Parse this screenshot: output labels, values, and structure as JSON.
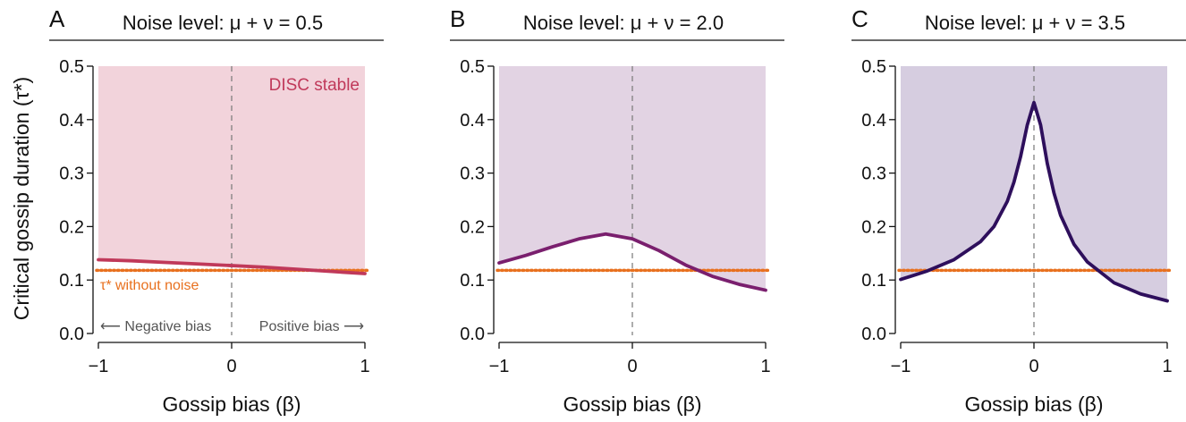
{
  "figure": {
    "ylabel": "Critical gossip duration (τ*)",
    "xlabel": "Gossip bias (β)",
    "annotations": {
      "region_label": "DISC stable",
      "baseline_label": "τ* without noise",
      "negative_bias": "⟵ Negative bias",
      "positive_bias": "Positive bias ⟶"
    }
  },
  "chart_data": [
    {
      "type": "line",
      "panel": "A",
      "title": "Noise level: μ + ν = 0.5",
      "xlabel": "Gossip bias (β)",
      "ylabel": "Critical gossip duration (τ*)",
      "xlim": [
        -1,
        1
      ],
      "ylim": [
        0,
        0.5
      ],
      "xticks": [
        -1,
        0,
        1
      ],
      "xtick_labels": [
        "−1",
        "0",
        "1"
      ],
      "yticks": [
        0.0,
        0.1,
        0.2,
        0.3,
        0.4,
        0.5
      ],
      "ytick_labels": [
        "0.0",
        "0.1",
        "0.2",
        "0.3",
        "0.4",
        "0.5"
      ],
      "shade_color": "#f2d3db",
      "curve_color": "#c0395a",
      "baseline": 0.118,
      "baseline_color": "#e8701e",
      "x": [
        -1.0,
        -0.75,
        -0.5,
        -0.25,
        0.0,
        0.25,
        0.5,
        0.75,
        1.0
      ],
      "y": [
        0.138,
        0.136,
        0.133,
        0.13,
        0.127,
        0.124,
        0.12,
        0.116,
        0.112
      ]
    },
    {
      "type": "line",
      "panel": "B",
      "title": "Noise level: μ + ν = 2.0",
      "xlabel": "Gossip bias (β)",
      "xlim": [
        -1,
        1
      ],
      "ylim": [
        0,
        0.5
      ],
      "xticks": [
        -1,
        0,
        1
      ],
      "xtick_labels": [
        "−1",
        "0",
        "1"
      ],
      "yticks": [
        0.0,
        0.1,
        0.2,
        0.3,
        0.4,
        0.5
      ],
      "ytick_labels": [
        "0.0",
        "0.1",
        "0.2",
        "0.3",
        "0.4",
        "0.5"
      ],
      "shade_color": "#e2d3e3",
      "curve_color": "#7a1f6e",
      "baseline": 0.118,
      "baseline_color": "#e8701e",
      "x": [
        -1.0,
        -0.8,
        -0.6,
        -0.4,
        -0.2,
        0.0,
        0.2,
        0.4,
        0.6,
        0.8,
        1.0
      ],
      "y": [
        0.132,
        0.146,
        0.162,
        0.177,
        0.186,
        0.177,
        0.155,
        0.128,
        0.107,
        0.092,
        0.081
      ]
    },
    {
      "type": "line",
      "panel": "C",
      "title": "Noise level: μ + ν = 3.5",
      "xlabel": "Gossip bias (β)",
      "xlim": [
        -1,
        1
      ],
      "ylim": [
        0,
        0.5
      ],
      "xticks": [
        -1,
        0,
        1
      ],
      "xtick_labels": [
        "−1",
        "0",
        "1"
      ],
      "yticks": [
        0.0,
        0.1,
        0.2,
        0.3,
        0.4,
        0.5
      ],
      "ytick_labels": [
        "0.0",
        "0.1",
        "0.2",
        "0.3",
        "0.4",
        "0.5"
      ],
      "shade_color": "#d6cde0",
      "curve_color": "#2e0f5c",
      "baseline": 0.118,
      "baseline_color": "#e8701e",
      "x": [
        -1.0,
        -0.8,
        -0.6,
        -0.4,
        -0.3,
        -0.2,
        -0.15,
        -0.1,
        -0.05,
        0.0,
        0.05,
        0.1,
        0.15,
        0.2,
        0.3,
        0.4,
        0.6,
        0.8,
        1.0
      ],
      "y": [
        0.101,
        0.117,
        0.138,
        0.172,
        0.2,
        0.247,
        0.283,
        0.331,
        0.39,
        0.432,
        0.39,
        0.318,
        0.263,
        0.221,
        0.167,
        0.134,
        0.095,
        0.074,
        0.061
      ]
    }
  ]
}
